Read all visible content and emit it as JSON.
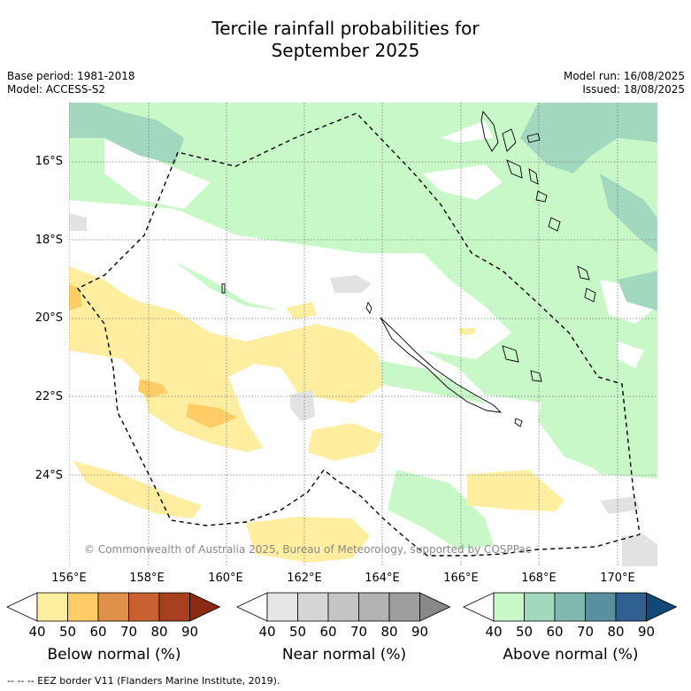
{
  "title_line1": "Tercile rainfall probabilities for",
  "title_line2": "September 2025",
  "meta": {
    "base_period": "Base period: 1981-2018",
    "model": "Model: ACCESS-S2",
    "model_run": "Model run: 16/08/2025",
    "issued": "Issued: 18/08/2025"
  },
  "lat_labels": [
    "16°S",
    "18°S",
    "20°S",
    "22°S",
    "24°S"
  ],
  "lon_labels": [
    "156°E",
    "158°E",
    "160°E",
    "162°E",
    "164°E",
    "166°E",
    "168°E",
    "170°E"
  ],
  "copyright": "© Commonwealth of Australia 2025, Bureau of Meteorology, supported by COSPPac",
  "colorbars": {
    "below": {
      "title": "Below normal (%)",
      "ticks": [
        "40",
        "50",
        "60",
        "70",
        "80",
        "90"
      ],
      "colors": [
        "#ffffff",
        "#ffeea0",
        "#ffcc66",
        "#e09048",
        "#c86030",
        "#a84020",
        "#8a2a10"
      ]
    },
    "near": {
      "title": "Near normal (%)",
      "ticks": [
        "40",
        "50",
        "60",
        "70",
        "80",
        "90"
      ],
      "colors": [
        "#ffffff",
        "#e6e6e6",
        "#d6d6d6",
        "#c4c4c4",
        "#b2b2b2",
        "#9e9e9e",
        "#888888"
      ]
    },
    "above": {
      "title": "Above normal (%)",
      "ticks": [
        "40",
        "50",
        "60",
        "70",
        "80",
        "90"
      ],
      "colors": [
        "#ffffff",
        "#c8f8c8",
        "#a2d8be",
        "#80b8b0",
        "#5890a0",
        "#306090",
        "#104878"
      ]
    }
  },
  "footnote": "--  --  -- EEZ border V11 (Flanders Marine Institute, 2019)."
}
